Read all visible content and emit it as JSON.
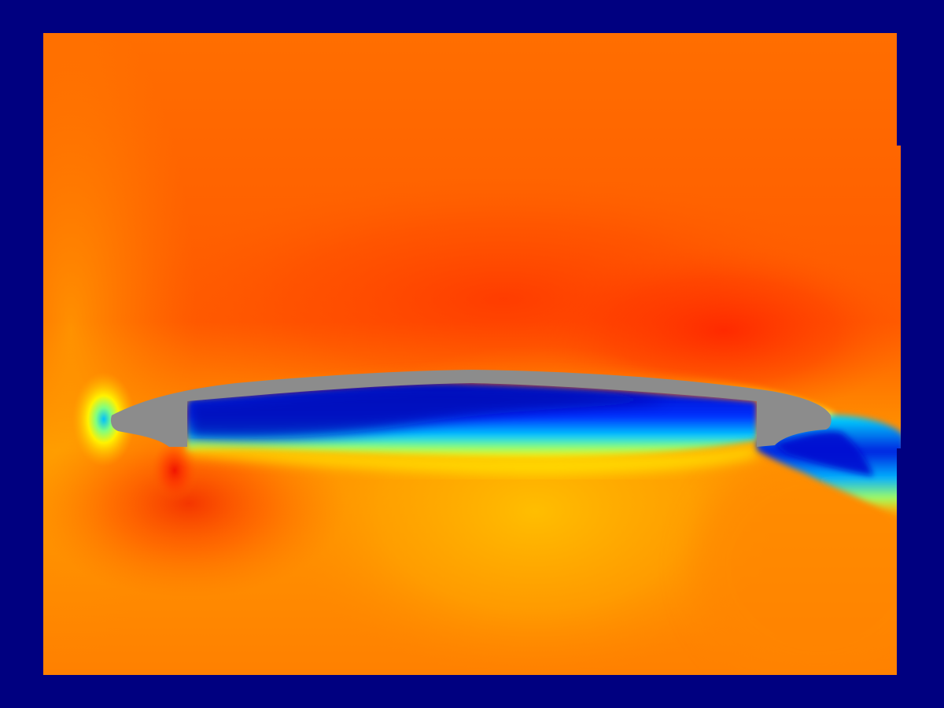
{
  "figure": {
    "description_visible_text": "",
    "colormap": "jet",
    "colors": {
      "background_frame": "#000080",
      "field_base": "#FF6A00",
      "field_high": "#FF2A00",
      "field_mid": "#FFB000",
      "field_low_blue": "#0010D0",
      "field_cyan": "#00E5FF",
      "field_yellow": "#FFF200",
      "body_fill": "#8C8C8C"
    },
    "regions": [
      {
        "name": "upper-high-zone",
        "level": "high"
      },
      {
        "name": "lower-mid-zone",
        "level": "medium"
      },
      {
        "name": "cavity-low-zone",
        "level": "low"
      },
      {
        "name": "wake-low-zone",
        "level": "low"
      },
      {
        "name": "leading-edge-stagnation",
        "level": "low"
      }
    ],
    "body": {
      "name": "airfoil-body",
      "color": "#8C8C8C"
    }
  }
}
